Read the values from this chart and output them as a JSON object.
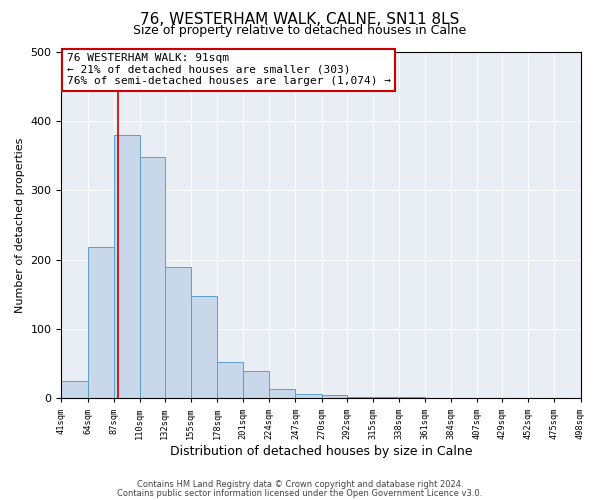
{
  "title": "76, WESTERHAM WALK, CALNE, SN11 8LS",
  "subtitle": "Size of property relative to detached houses in Calne",
  "xlabel": "Distribution of detached houses by size in Calne",
  "ylabel": "Number of detached properties",
  "bar_edges": [
    41,
    64,
    87,
    110,
    132,
    155,
    178,
    201,
    224,
    247,
    270,
    292,
    315,
    338,
    361,
    384,
    407,
    429,
    452,
    475,
    498
  ],
  "bar_heights": [
    25,
    218,
    380,
    348,
    190,
    147,
    53,
    40,
    13,
    7,
    5,
    2,
    2,
    2,
    1,
    1,
    1,
    1,
    1,
    1
  ],
  "bar_color": "#c8d8ea",
  "bar_edge_color": "#5a9ec8",
  "property_line_x": 91,
  "property_line_color": "#cc0000",
  "ylim": [
    0,
    500
  ],
  "xlim": [
    41,
    498
  ],
  "annotation_line1": "76 WESTERHAM WALK: 91sqm",
  "annotation_line2": "← 21% of detached houses are smaller (303)",
  "annotation_line3": "76% of semi-detached houses are larger (1,074) →",
  "annotation_box_color": "#ffffff",
  "annotation_box_border": "#cc0000",
  "tick_labels": [
    "41sqm",
    "64sqm",
    "87sqm",
    "110sqm",
    "132sqm",
    "155sqm",
    "178sqm",
    "201sqm",
    "224sqm",
    "247sqm",
    "270sqm",
    "292sqm",
    "315sqm",
    "338sqm",
    "361sqm",
    "384sqm",
    "407sqm",
    "429sqm",
    "452sqm",
    "475sqm",
    "498sqm"
  ],
  "footer_line1": "Contains HM Land Registry data © Crown copyright and database right 2024.",
  "footer_line2": "Contains public sector information licensed under the Open Government Licence v3.0.",
  "background_color": "#ffffff",
  "plot_background_color": "#e8eef4",
  "grid_color": "#ffffff",
  "title_fontsize": 11,
  "subtitle_fontsize": 9,
  "xlabel_fontsize": 9,
  "ylabel_fontsize": 8
}
